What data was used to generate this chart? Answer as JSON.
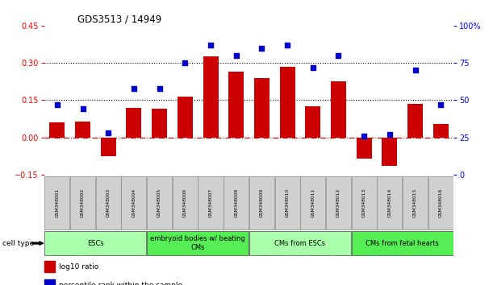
{
  "title": "GDS3513 / 14949",
  "samples": [
    "GSM348001",
    "GSM348002",
    "GSM348003",
    "GSM348004",
    "GSM348005",
    "GSM348006",
    "GSM348007",
    "GSM348008",
    "GSM348009",
    "GSM348010",
    "GSM348011",
    "GSM348012",
    "GSM348013",
    "GSM348014",
    "GSM348015",
    "GSM348016"
  ],
  "log10_ratio": [
    0.06,
    0.065,
    -0.075,
    0.12,
    0.115,
    0.165,
    0.325,
    0.265,
    0.24,
    0.285,
    0.125,
    0.225,
    -0.085,
    -0.115,
    0.135,
    0.055
  ],
  "percentile_rank": [
    47,
    44,
    28,
    58,
    58,
    75,
    87,
    80,
    85,
    87,
    72,
    80,
    26,
    27,
    70,
    47
  ],
  "bar_color": "#cc0000",
  "dot_color": "#0000cc",
  "ylim_left": [
    -0.15,
    0.45
  ],
  "ylim_right": [
    0,
    100
  ],
  "yticks_left": [
    -0.15,
    0.0,
    0.15,
    0.3,
    0.45
  ],
  "yticks_right": [
    0,
    25,
    50,
    75,
    100
  ],
  "hlines": [
    0.15,
    0.3
  ],
  "cell_groups": [
    {
      "label": "ESCs",
      "start": 0,
      "end": 3,
      "color": "#aaffaa"
    },
    {
      "label": "embryoid bodies w/ beating\nCMs",
      "start": 4,
      "end": 7,
      "color": "#55ee55"
    },
    {
      "label": "CMs from ESCs",
      "start": 8,
      "end": 11,
      "color": "#aaffaa"
    },
    {
      "label": "CMs from fetal hearts",
      "start": 12,
      "end": 15,
      "color": "#55ee55"
    }
  ],
  "legend_bar_label": "log10 ratio",
  "legend_dot_label": "percentile rank within the sample",
  "background_color": "#ffffff",
  "plot_bg_color": "#ffffff",
  "sample_box_color": "#d0d0d0",
  "cell_type_label": "cell type"
}
